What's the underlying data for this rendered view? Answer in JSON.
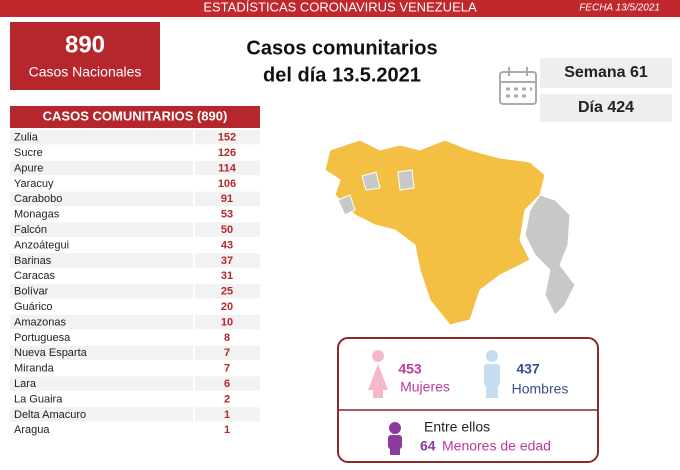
{
  "header": {
    "title": "ESTADÍSTICAS CORONAVIRUS VENEZUELA",
    "date": "FECHA 13/5/2021"
  },
  "national": {
    "value": 890,
    "label": "Casos Nacionales"
  },
  "headline": [
    "Casos comunitarios",
    "del día 13.5.2021"
  ],
  "week": "Semana 61",
  "day": "Día 424",
  "table": {
    "title": "CASOS COMUNITARIOS (890)",
    "rows": [
      [
        "Zulia",
        152
      ],
      [
        "Sucre",
        126
      ],
      [
        "Apure",
        114
      ],
      [
        "Yaracuy",
        106
      ],
      [
        "Carabobo",
        91
      ],
      [
        "Monagas",
        53
      ],
      [
        "Falcón",
        50
      ],
      [
        "Anzoátegui",
        43
      ],
      [
        "Barinas",
        37
      ],
      [
        "Caracas",
        31
      ],
      [
        "Bolívar",
        25
      ],
      [
        "Guárico",
        20
      ],
      [
        "Amazonas",
        10
      ],
      [
        "Portuguesa",
        8
      ],
      [
        "Nueva Esparta",
        7
      ],
      [
        "Miranda",
        7
      ],
      [
        "Lara",
        6
      ],
      [
        "La Guaira",
        2
      ],
      [
        "Delta Amacuro",
        1
      ],
      [
        "Aragua",
        1
      ]
    ]
  },
  "gender": {
    "women": {
      "value": 453,
      "label": "Mujeres"
    },
    "men": {
      "value": 437,
      "label": "Hombres"
    }
  },
  "minors": {
    "intro": "Entre ellos",
    "value": 64,
    "label": "Menores de edad"
  }
}
